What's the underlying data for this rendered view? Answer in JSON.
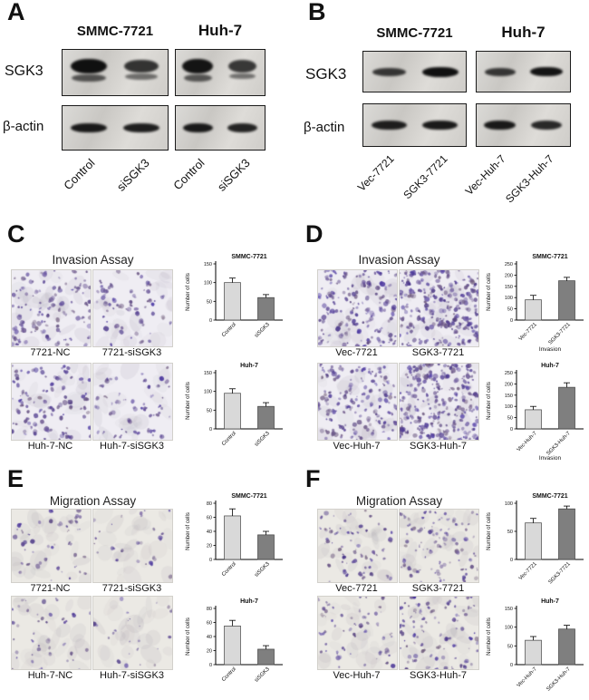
{
  "colors": {
    "stain_purple": "#5b4a8f",
    "invasion_bg": "#efedf3",
    "migration_bg": "#ebe9e4",
    "bar_light": "#d9d9d9",
    "bar_dark": "#7f7f7f",
    "band_color": "#101010"
  },
  "panel_a": {
    "label": "A",
    "col_headers": [
      "SMMC-7721",
      "Huh-7"
    ],
    "row_labels": [
      "SGK3",
      "β-actin"
    ],
    "lane_labels": [
      "Control",
      "siSGK3",
      "Control",
      "siSGK3"
    ],
    "blots": [
      {
        "name": "sgk3-smmc7721",
        "bands": [
          1.0,
          0.65
        ],
        "doublet": true
      },
      {
        "name": "sgk3-huh7",
        "bands": [
          0.95,
          0.6
        ],
        "doublet": true
      },
      {
        "name": "bactin-smmc7721",
        "bands": [
          0.9,
          0.85
        ],
        "doublet": false
      },
      {
        "name": "bactin-huh7",
        "bands": [
          0.9,
          0.8
        ],
        "doublet": false
      }
    ]
  },
  "panel_b": {
    "label": "B",
    "col_headers": [
      "SMMC-7721",
      "Huh-7"
    ],
    "row_labels": [
      "SGK3",
      "β-actin"
    ],
    "lane_labels": [
      "Vec-7721",
      "SGK3-7721",
      "Vec-Huh-7",
      "SGK3-Huh-7"
    ],
    "blots": [
      {
        "name": "sgk3-smmc7721",
        "bands": [
          0.6,
          1.0
        ],
        "doublet": false
      },
      {
        "name": "sgk3-huh7",
        "bands": [
          0.6,
          0.95
        ],
        "doublet": false
      },
      {
        "name": "bactin-smmc7721",
        "bands": [
          0.85,
          0.9
        ],
        "doublet": false
      },
      {
        "name": "bactin-huh7",
        "bands": [
          0.9,
          0.75
        ],
        "doublet": false
      }
    ]
  },
  "panel_c": {
    "label": "C",
    "title": "Invasion Assay",
    "images": [
      {
        "label": "7721-NC",
        "density": 110
      },
      {
        "label": "7721-siSGK3",
        "density": 60
      },
      {
        "label": "Huh-7-NC",
        "density": 100
      },
      {
        "label": "Huh-7-siSGK3",
        "density": 55
      }
    ]
  },
  "panel_d": {
    "label": "D",
    "title": "Invasion Assay",
    "images": [
      {
        "label": "Vec-7721",
        "density": 150
      },
      {
        "label": "SGK3-7721",
        "density": 250
      },
      {
        "label": "Vec-Huh-7",
        "density": 150
      },
      {
        "label": "SGK3-Huh-7",
        "density": 260
      }
    ]
  },
  "panel_e": {
    "label": "E",
    "title": "Migration Assay",
    "images": [
      {
        "label": "7721-NC",
        "density": 45
      },
      {
        "label": "7721-siSGK3",
        "density": 25
      },
      {
        "label": "Huh-7-NC",
        "density": 40
      },
      {
        "label": "Huh-7-siSGK3",
        "density": 22
      }
    ]
  },
  "panel_f": {
    "label": "F",
    "title": "Migration Assay",
    "images": [
      {
        "label": "Vec-7721",
        "density": 60
      },
      {
        "label": "SGK3-7721",
        "density": 95
      },
      {
        "label": "Vec-Huh-7",
        "density": 55
      },
      {
        "label": "SGK3-Huh-7",
        "density": 90
      }
    ]
  },
  "chart_data": [
    {
      "id": "c1",
      "panel": "C",
      "type": "bar",
      "title": "SMMC-7721",
      "ylabel": "Number of cells",
      "xlabel": "",
      "categories": [
        "Control",
        "siSGK3"
      ],
      "values": [
        100,
        60
      ],
      "errors": [
        12,
        8
      ],
      "ylim": [
        0,
        150
      ],
      "yticks": [
        0,
        50,
        100,
        150
      ],
      "bar_colors": [
        "#d9d9d9",
        "#7f7f7f"
      ]
    },
    {
      "id": "c2",
      "panel": "C",
      "type": "bar",
      "title": "Huh-7",
      "ylabel": "Number of cells",
      "xlabel": "",
      "categories": [
        "Control",
        "siSGK3"
      ],
      "values": [
        95,
        60
      ],
      "errors": [
        12,
        10
      ],
      "ylim": [
        0,
        150
      ],
      "yticks": [
        0,
        50,
        100,
        150
      ],
      "bar_colors": [
        "#d9d9d9",
        "#7f7f7f"
      ]
    },
    {
      "id": "d1",
      "panel": "D",
      "type": "bar",
      "title": "SMMC-7721",
      "ylabel": "Number of cells",
      "xlabel": "Invasion",
      "categories": [
        "Vec-7721",
        "SGK3-7721"
      ],
      "values": [
        90,
        175
      ],
      "errors": [
        20,
        15
      ],
      "ylim": [
        0,
        250
      ],
      "yticks": [
        0,
        50,
        100,
        150,
        200,
        250
      ],
      "bar_colors": [
        "#d9d9d9",
        "#7f7f7f"
      ]
    },
    {
      "id": "d2",
      "panel": "D",
      "type": "bar",
      "title": "Huh-7",
      "ylabel": "Number of cells",
      "xlabel": "Invasion",
      "categories": [
        "Vec-Huh-7",
        "SGK3-Huh-7"
      ],
      "values": [
        85,
        185
      ],
      "errors": [
        15,
        20
      ],
      "ylim": [
        0,
        250
      ],
      "yticks": [
        0,
        50,
        100,
        150,
        200,
        250
      ],
      "bar_colors": [
        "#d9d9d9",
        "#7f7f7f"
      ]
    },
    {
      "id": "e1",
      "panel": "E",
      "type": "bar",
      "title": "SMMC-7721",
      "ylabel": "Number of cells",
      "xlabel": "",
      "categories": [
        "Control",
        "siSGK3"
      ],
      "values": [
        62,
        35
      ],
      "errors": [
        10,
        5
      ],
      "ylim": [
        0,
        80
      ],
      "yticks": [
        0,
        20,
        40,
        60,
        80
      ],
      "bar_colors": [
        "#d9d9d9",
        "#7f7f7f"
      ]
    },
    {
      "id": "e2",
      "panel": "E",
      "type": "bar",
      "title": "Huh-7",
      "ylabel": "Number of cells",
      "xlabel": "",
      "categories": [
        "Control",
        "siSGK3"
      ],
      "values": [
        55,
        22
      ],
      "errors": [
        8,
        5
      ],
      "ylim": [
        0,
        80
      ],
      "yticks": [
        0,
        20,
        40,
        60,
        80
      ],
      "bar_colors": [
        "#d9d9d9",
        "#7f7f7f"
      ]
    },
    {
      "id": "f1",
      "panel": "F",
      "type": "bar",
      "title": "SMMC-7721",
      "ylabel": "Number of cells",
      "xlabel": "",
      "categories": [
        "Vec-7721",
        "SGK3-7721"
      ],
      "values": [
        65,
        90
      ],
      "errors": [
        8,
        5
      ],
      "ylim": [
        0,
        100
      ],
      "yticks": [
        0,
        50,
        100
      ],
      "bar_colors": [
        "#d9d9d9",
        "#7f7f7f"
      ]
    },
    {
      "id": "f2",
      "panel": "F",
      "type": "bar",
      "title": "Huh-7",
      "ylabel": "Number of cells",
      "xlabel": "",
      "categories": [
        "Vec-Huh-7",
        "SGK3-Huh-7"
      ],
      "values": [
        65,
        95
      ],
      "errors": [
        10,
        10
      ],
      "ylim": [
        0,
        150
      ],
      "yticks": [
        0,
        50,
        100,
        150
      ],
      "bar_colors": [
        "#d9d9d9",
        "#7f7f7f"
      ]
    }
  ]
}
